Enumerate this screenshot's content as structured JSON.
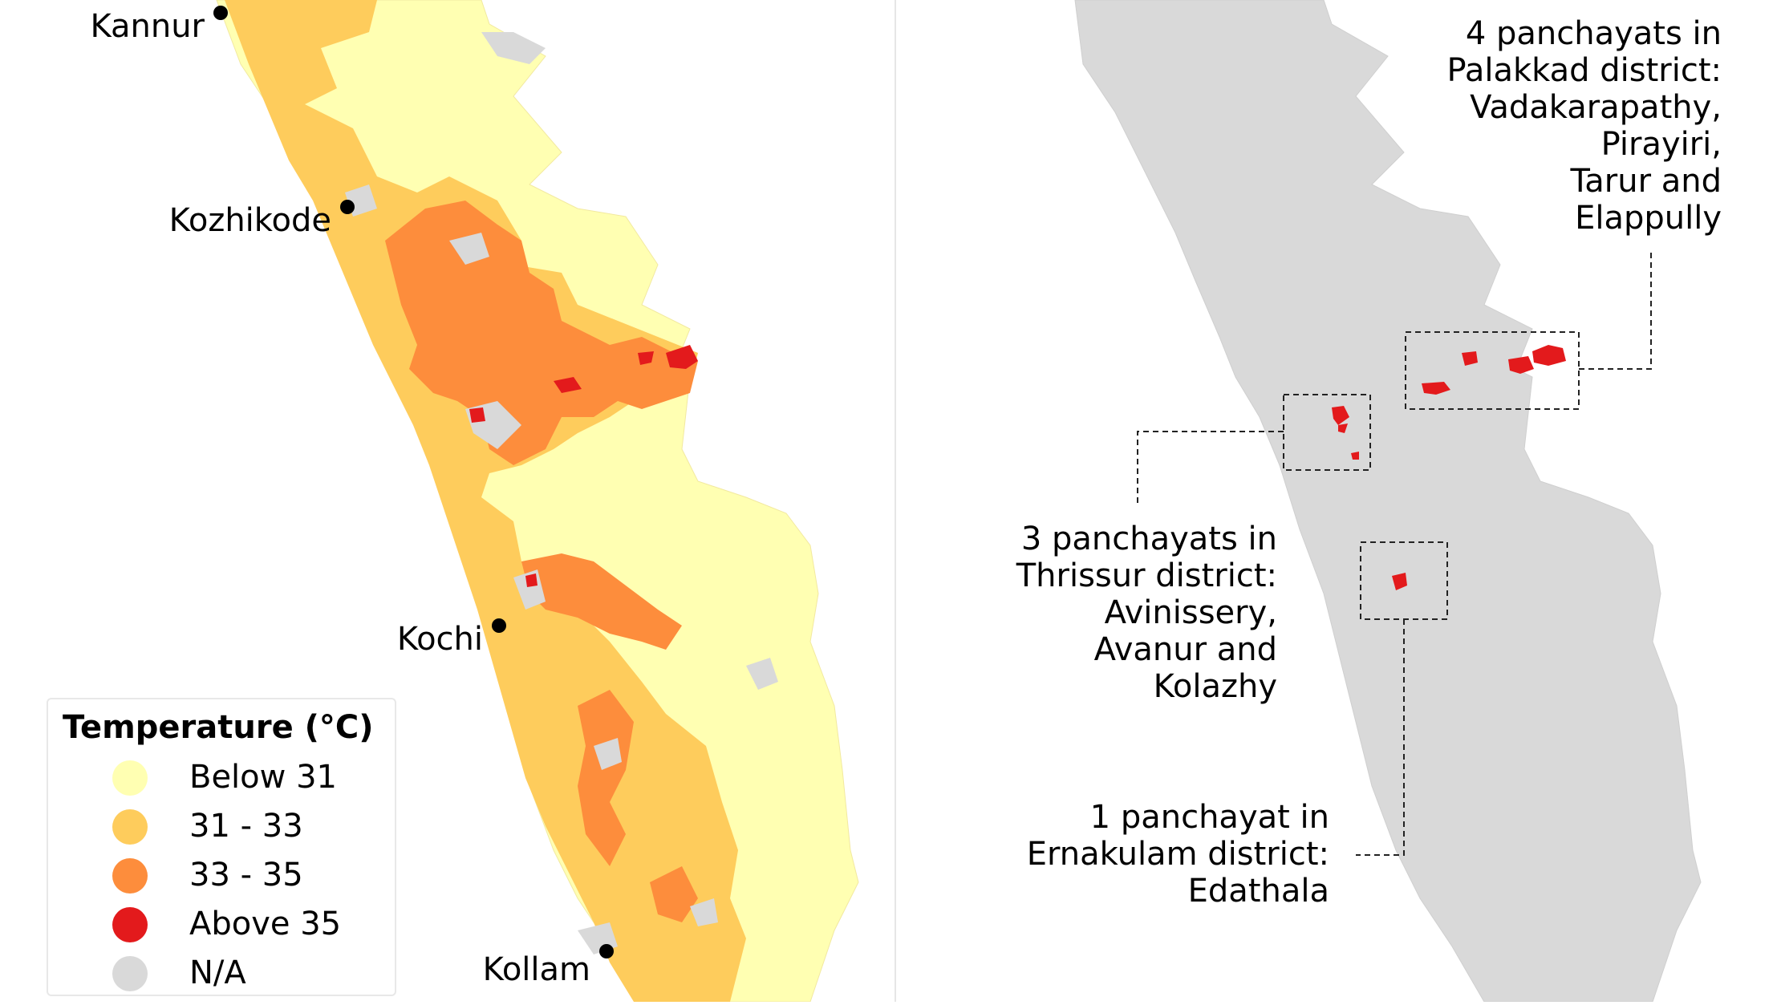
{
  "colors": {
    "below_31": "#ffffb2",
    "31_33": "#fecc5c",
    "33_35": "#fd8d3c",
    "above_35": "#e31a1c",
    "na": "#d9d9d9"
  },
  "left_map": {
    "cities": [
      "Kannur",
      "Kozhikode",
      "Kochi",
      "Kollam"
    ],
    "legend": {
      "title": "Temperature (°C)",
      "items": [
        "Below 31",
        "31 - 33",
        "33 - 35",
        "Above 35",
        "N/A"
      ]
    }
  },
  "right_map": {
    "callouts": {
      "palakkad": [
        "4 panchayats in",
        "Palakkad district:",
        "Vadakarapathy,",
        "Pirayiri,",
        "Tarur and",
        "Elappully"
      ],
      "thrissur": [
        "3 panchayats in",
        "Thrissur district:",
        "Avinissery,",
        "Avanur and",
        "Kolazhy"
      ],
      "ernakulam": [
        "1 panchayat in",
        "Ernakulam district:",
        "Edathala"
      ]
    }
  }
}
